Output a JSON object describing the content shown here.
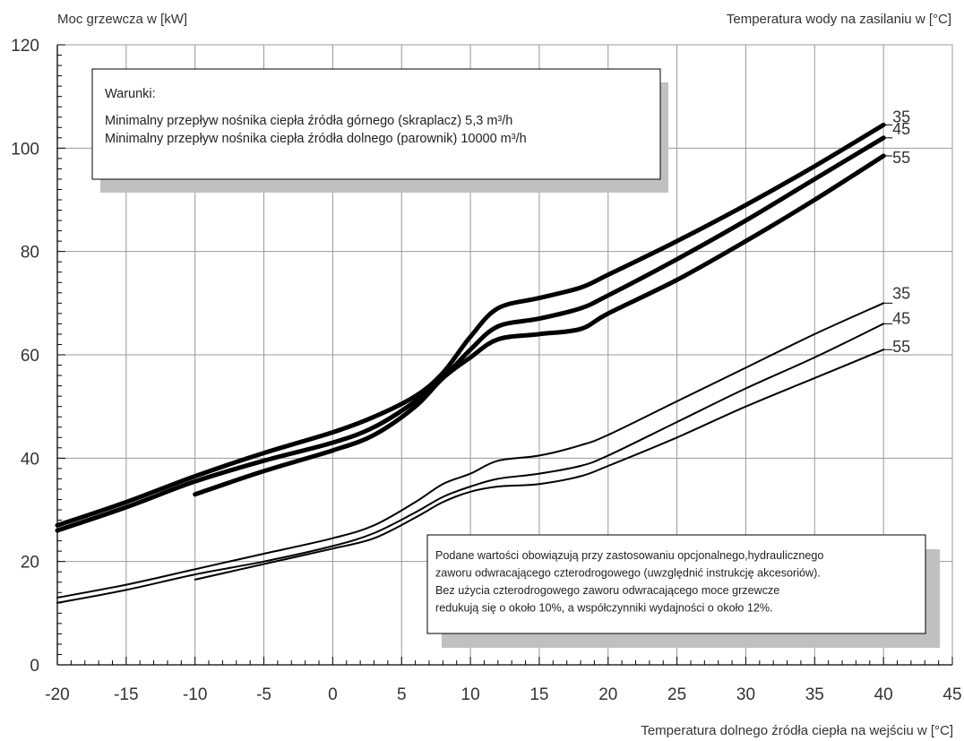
{
  "chart_data": {
    "type": "line",
    "ylabel": "Moc grzewcza w [kW]",
    "xlabel": "Temperatura dolnego źródła ciepła na wejściu w [°C]",
    "series_group_label": "Temperatura wody na zasilaniu w [°C]",
    "xlim": [
      -20,
      45
    ],
    "ylim": [
      0,
      120
    ],
    "x_ticks": [
      -20,
      -15,
      -10,
      -5,
      0,
      5,
      10,
      15,
      20,
      25,
      30,
      35,
      40,
      45
    ],
    "y_ticks": [
      0,
      20,
      40,
      60,
      80,
      100,
      120
    ],
    "grid": true,
    "series": [
      {
        "name": "35",
        "group": "heavy",
        "x": [
          -20,
          -15,
          -10,
          -5,
          0,
          3,
          6,
          8,
          10,
          12,
          15,
          18,
          20,
          25,
          30,
          35,
          40
        ],
        "y": [
          27,
          31.5,
          36.5,
          41,
          45,
          48,
          52,
          56.5,
          63.5,
          69,
          71,
          73,
          75.5,
          82,
          89,
          96.5,
          104.5
        ]
      },
      {
        "name": "45",
        "group": "heavy",
        "x": [
          -20,
          -15,
          -10,
          -5,
          0,
          3,
          6,
          8,
          10,
          12,
          15,
          18,
          20,
          25,
          30,
          35,
          40
        ],
        "y": [
          26,
          30.5,
          35.5,
          39.5,
          43,
          46,
          51,
          55.5,
          61,
          65.5,
          67,
          69,
          71.5,
          78.5,
          86,
          94,
          102
        ]
      },
      {
        "name": "55",
        "group": "heavy",
        "x": [
          -10,
          -5,
          0,
          3,
          6,
          8,
          10,
          12,
          15,
          18,
          20,
          25,
          30,
          35,
          40
        ],
        "y": [
          33,
          37.5,
          41.5,
          44.5,
          50,
          55.5,
          59.5,
          63,
          64,
          65,
          68,
          74.5,
          82,
          90,
          98.5
        ]
      },
      {
        "name": "35",
        "group": "thin",
        "x": [
          -20,
          -15,
          -10,
          -5,
          0,
          3,
          6,
          8,
          10,
          12,
          15,
          18,
          20,
          25,
          30,
          35,
          40
        ],
        "y": [
          13,
          15.5,
          18.5,
          21.5,
          24.5,
          27,
          31.5,
          35,
          37,
          39.5,
          40.5,
          42.5,
          44.5,
          51,
          57.5,
          64,
          70
        ]
      },
      {
        "name": "45",
        "group": "thin",
        "x": [
          -20,
          -15,
          -10,
          -5,
          0,
          3,
          6,
          8,
          10,
          12,
          15,
          18,
          20,
          25,
          30,
          35,
          40
        ],
        "y": [
          12,
          14.5,
          17.5,
          20,
          23,
          25.5,
          29.5,
          32.5,
          34.5,
          36,
          37,
          38.5,
          40.5,
          47,
          53.5,
          59.5,
          66
        ]
      },
      {
        "name": "55",
        "group": "thin",
        "x": [
          -10,
          -5,
          0,
          3,
          6,
          8,
          10,
          12,
          15,
          18,
          20,
          25,
          30,
          35,
          40
        ],
        "y": [
          16.5,
          19.5,
          22.5,
          24.5,
          28.5,
          31.5,
          33.5,
          34.5,
          35,
          36.5,
          38.5,
          44,
          50,
          55.5,
          61
        ]
      }
    ],
    "annotations": [
      {
        "name": "conditions-box",
        "lines": [
          "Warunki:",
          "Minimalny przepływ nośnika ciepła źródła górnego (skraplacz) 5,3 m³/h",
          "Minimalny przepływ nośnika ciepła źródła dolnego (parownik) 10000 m³/h"
        ]
      },
      {
        "name": "note-box",
        "lines": [
          "Podane wartości obowiązują przy zastosowaniu opcjonalnego,hydraulicznego",
          "zaworu odwracającego czterodrogowego (uwzględnić instrukcję akcesoriów).",
          "Bez użycia czterodrogowego zaworu odwracającego moce grzewcze",
          "redukują się o około 10%, a współczynniki wydajności o około 12%."
        ]
      }
    ],
    "colors": {
      "line": "#000000",
      "grid": "#999999",
      "shadow": "#c0c0c0",
      "text": "#333333"
    }
  }
}
